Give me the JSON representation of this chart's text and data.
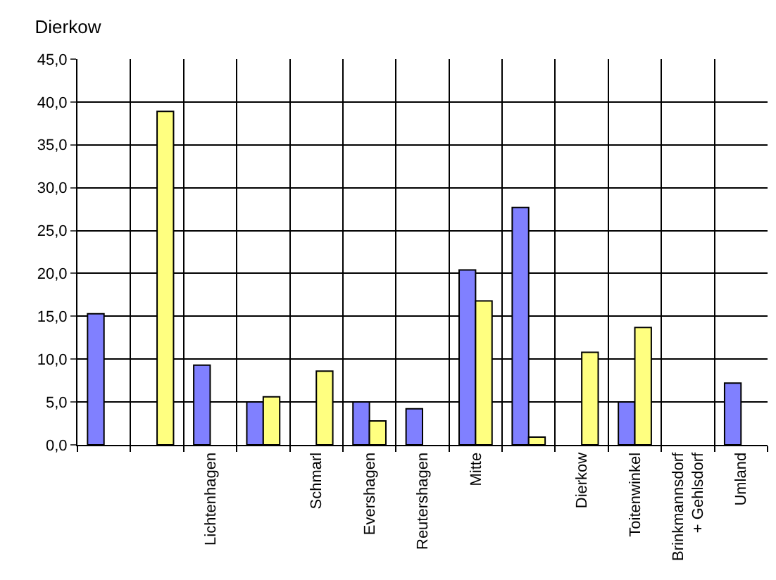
{
  "chart_data": {
    "type": "bar",
    "title": "Dierkow",
    "categories": [
      null,
      null,
      "Lichtenhagen",
      null,
      "Schmarl",
      "Evershagen",
      "Reutershagen",
      "Mitte",
      null,
      "Dierkow",
      "Toitenwinkel",
      "Brinkmannsdorf\n+ Gehlsdorf",
      "Umland"
    ],
    "series": [
      {
        "color": "#8080ff",
        "values": [
          15.3,
          null,
          9.3,
          5.0,
          null,
          5.0,
          4.2,
          20.4,
          27.7,
          null,
          5.0,
          null,
          7.2
        ]
      },
      {
        "color": "#ffff80",
        "values": [
          null,
          38.9,
          null,
          5.6,
          8.6,
          2.8,
          null,
          16.8,
          0.9,
          10.8,
          13.7,
          null,
          null
        ]
      }
    ],
    "ylim": [
      0,
      45
    ],
    "yticks": [
      {
        "value": 0,
        "label": "0,0"
      },
      {
        "value": 5,
        "label": "5,0"
      },
      {
        "value": 10,
        "label": "10,0"
      },
      {
        "value": 15,
        "label": "15,0"
      },
      {
        "value": 20,
        "label": "20,0"
      },
      {
        "value": 25,
        "label": "25,0"
      },
      {
        "value": 30,
        "label": "30,0"
      },
      {
        "value": 35,
        "label": "35,0"
      },
      {
        "value": 40,
        "label": "40,0"
      },
      {
        "value": 45,
        "label": "45,0"
      }
    ],
    "grid": true,
    "legend": false
  }
}
